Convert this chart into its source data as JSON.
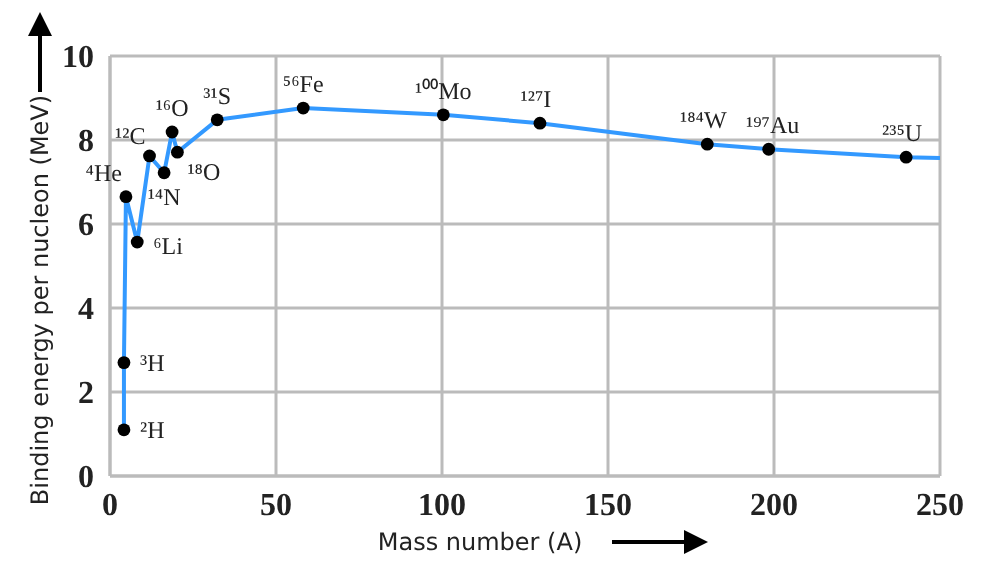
{
  "chart_data": {
    "type": "line",
    "xlabel": "Mass number (A)",
    "ylabel": "Binding energy  per nucleon (MeV)",
    "xlim": [
      0,
      250
    ],
    "ylim": [
      0,
      10
    ],
    "xticks": [
      0,
      50,
      100,
      150,
      200,
      250
    ],
    "yticks": [
      0,
      2,
      4,
      6,
      8,
      10
    ],
    "grid": true,
    "series": [
      {
        "color": "#3399ff",
        "marker": "none",
        "x": [
          4.2,
          4.2,
          4.8,
          8.2,
          11.9,
          16.3,
          18.7,
          20.3,
          32.3,
          58.2,
          100.4,
          129.5,
          179.9,
          198.4,
          239.8,
          250
        ],
        "values": [
          1.1,
          2.7,
          6.65,
          5.57,
          7.62,
          7.22,
          8.19,
          7.71,
          8.48,
          8.76,
          8.6,
          8.4,
          7.9,
          7.78,
          7.59,
          7.57
        ]
      },
      {
        "type": "scatter",
        "color": "#000000",
        "marker": "circle",
        "x": [
          4.2,
          4.2,
          4.8,
          8.2,
          11.9,
          16.3,
          18.7,
          20.3,
          32.3,
          58.2,
          100.4,
          129.5,
          179.9,
          198.4,
          239.8
        ],
        "values": [
          1.1,
          2.7,
          6.65,
          5.57,
          7.62,
          7.22,
          8.19,
          7.71,
          8.48,
          8.76,
          8.6,
          8.4,
          7.9,
          7.78,
          7.59
        ],
        "value_labels": [
          "²H",
          "³H",
          "⁴He",
          "⁶Li",
          "¹²C",
          "¹⁴N",
          "¹⁶O",
          "¹⁸O",
          "³¹S",
          "⁵⁶Fe",
          "¹⁰⁰Mo",
          "¹²⁷I",
          "¹⁸⁴W",
          "¹⁹⁷Au",
          "²³⁵U"
        ]
      }
    ]
  }
}
